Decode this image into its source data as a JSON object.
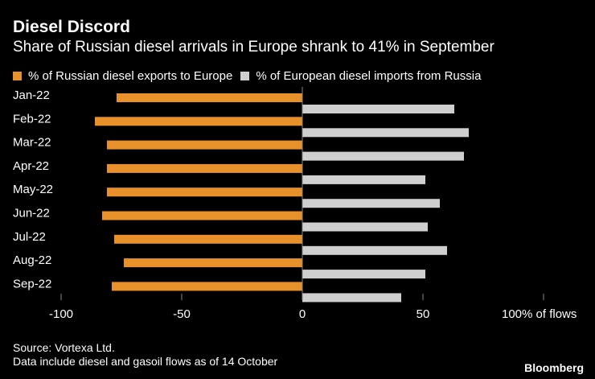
{
  "title": "Diesel Discord",
  "subtitle": "Share of Russian diesel arrivals in Europe shrank to 41% in September",
  "source_line1": "Source: Vortexa Ltd.",
  "source_line2": "Data include diesel and gasoil flows as of 14 October",
  "brand": "Bloomberg",
  "colors": {
    "background": "#000000",
    "orange": "#e8912a",
    "gray": "#cfcfcf",
    "text": "#ffffff"
  },
  "chart_data": {
    "type": "bar",
    "orientation": "horizontal",
    "categories": [
      "Jan-22",
      "Feb-22",
      "Mar-22",
      "Apr-22",
      "May-22",
      "Jun-22",
      "Jul-22",
      "Aug-22",
      "Sep-22"
    ],
    "series": [
      {
        "name": "% of Russian diesel exports to Europe",
        "color": "#e8912a",
        "values": [
          -77,
          -86,
          -81,
          -81,
          -81,
          -83,
          -78,
          -74,
          -79
        ]
      },
      {
        "name": "% of European diesel imports from Russia",
        "color": "#cfcfcf",
        "values": [
          63,
          69,
          67,
          51,
          57,
          52,
          60,
          51,
          41
        ]
      }
    ],
    "xlim": [
      -100,
      100
    ],
    "x_ticks": [
      {
        "value": -100,
        "label": "-100"
      },
      {
        "value": -50,
        "label": "-50"
      },
      {
        "value": 0,
        "label": "0"
      },
      {
        "value": 50,
        "label": "50"
      },
      {
        "value": 100,
        "label": "100% of flows"
      }
    ],
    "grid": false,
    "legend_position": "top-left"
  }
}
